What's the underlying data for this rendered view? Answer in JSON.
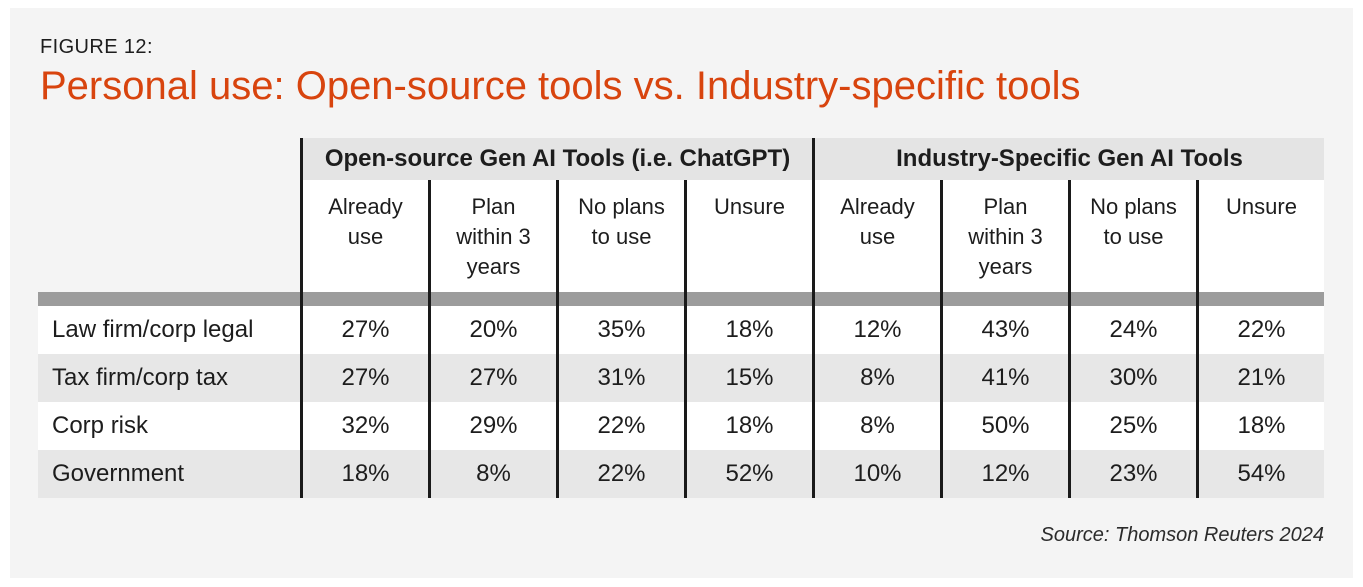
{
  "figure": {
    "label": "FIGURE 12:",
    "title": "Personal use: Open-source tools vs. Industry-specific tools"
  },
  "table": {
    "groups": [
      {
        "label": "Open-source Gen AI Tools (i.e. ChatGPT)"
      },
      {
        "label": "Industry-Specific Gen AI Tools"
      }
    ],
    "columns": [
      "Already\nuse",
      "Plan\nwithin 3\nyears",
      "No plans\nto use",
      "Unsure",
      "Already\nuse",
      "Plan\nwithin 3\nyears",
      "No plans\nto use",
      "Unsure"
    ],
    "rows": [
      {
        "label": "Law firm/corp legal",
        "values": [
          "27%",
          "20%",
          "35%",
          "18%",
          "12%",
          "43%",
          "24%",
          "22%"
        ]
      },
      {
        "label": "Tax firm/corp tax",
        "values": [
          "27%",
          "27%",
          "31%",
          "15%",
          "8%",
          "41%",
          "30%",
          "21%"
        ]
      },
      {
        "label": "Corp risk",
        "values": [
          "32%",
          "29%",
          "22%",
          "18%",
          "8%",
          "50%",
          "25%",
          "18%"
        ]
      },
      {
        "label": "Government",
        "values": [
          "18%",
          "8%",
          "22%",
          "52%",
          "10%",
          "12%",
          "23%",
          "54%"
        ]
      }
    ]
  },
  "source": "Source: Thomson Reuters 2024",
  "colors": {
    "accent_orange": "#d8440e",
    "panel_background": "#f4f4f4",
    "group_header_gray": "#e4e4e4",
    "row_shade_gray": "#e7e7e7",
    "divider_bar_gray": "#9c9c9c",
    "line_black": "#1a1a1a",
    "text_dark": "#1d1d1d"
  },
  "chart_data": {
    "type": "table",
    "title": "Personal use: Open-source tools vs. Industry-specific tools",
    "column_groups": [
      "Open-source Gen AI Tools (i.e. ChatGPT)",
      "Industry-Specific Gen AI Tools"
    ],
    "columns": [
      "Already use",
      "Plan within 3 years",
      "No plans to use",
      "Unsure",
      "Already use",
      "Plan within 3 years",
      "No plans to use",
      "Unsure"
    ],
    "categories": [
      "Law firm/corp legal",
      "Tax firm/corp tax",
      "Corp risk",
      "Government"
    ],
    "series": [
      {
        "name": "Open-source: Already use",
        "values": [
          27,
          27,
          32,
          18
        ]
      },
      {
        "name": "Open-source: Plan within 3 years",
        "values": [
          20,
          27,
          29,
          8
        ]
      },
      {
        "name": "Open-source: No plans to use",
        "values": [
          35,
          31,
          22,
          22
        ]
      },
      {
        "name": "Open-source: Unsure",
        "values": [
          18,
          15,
          18,
          52
        ]
      },
      {
        "name": "Industry-specific: Already use",
        "values": [
          12,
          8,
          8,
          10
        ]
      },
      {
        "name": "Industry-specific: Plan within 3 years",
        "values": [
          43,
          41,
          50,
          12
        ]
      },
      {
        "name": "Industry-specific: No plans to use",
        "values": [
          24,
          30,
          25,
          23
        ]
      },
      {
        "name": "Industry-specific: Unsure",
        "values": [
          22,
          21,
          18,
          54
        ]
      }
    ],
    "units": "percent",
    "source": "Source: Thomson Reuters 2024"
  }
}
